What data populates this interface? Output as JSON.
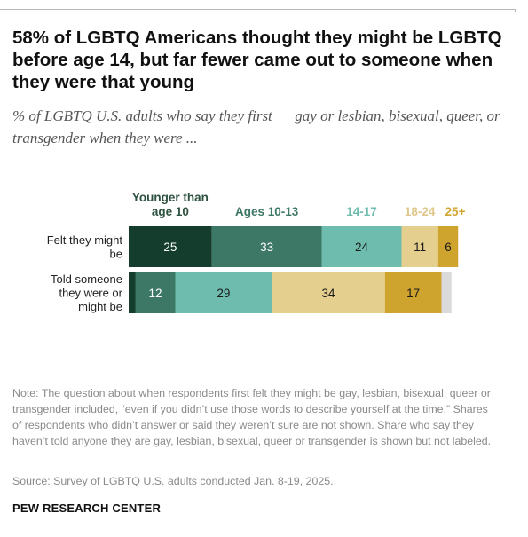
{
  "header": {
    "title": "58% of LGBTQ Americans thought they might be LGBTQ before age 14, but far fewer came out to someone when they were that young",
    "subtitle": "% of LGBTQ U.S. adults who say they first __ gay or lesbian, bisexual, queer, or transgender when they were ..."
  },
  "chart_data": {
    "type": "bar",
    "orientation": "horizontal",
    "stacked": true,
    "legend_position": "top",
    "categories": [
      [
        "Felt they might",
        "be"
      ],
      [
        "Told someone",
        "they were or",
        "might be"
      ]
    ],
    "series": [
      {
        "name": [
          "Younger than",
          "age 10"
        ],
        "color": "#143d2e",
        "label_color": "#ffffff",
        "legend_color": "#2f5240",
        "values": [
          25,
          2
        ]
      },
      {
        "name": [
          "Ages 10-13"
        ],
        "color": "#3d7866",
        "label_color": "#ffffff",
        "legend_color": "#3d7866",
        "values": [
          33,
          12
        ]
      },
      {
        "name": [
          "14-17"
        ],
        "color": "#6ebcae",
        "label_color": "#1a1a1a",
        "legend_color": "#6ebcae",
        "values": [
          24,
          29
        ]
      },
      {
        "name": [
          "18-24"
        ],
        "color": "#e5cf8f",
        "label_color": "#1a1a1a",
        "legend_color": "#e0c689",
        "values": [
          11,
          34
        ]
      },
      {
        "name": [
          "25+"
        ],
        "color": "#cfa42e",
        "label_color": "#1a1a1a",
        "legend_color": "#d1a630",
        "values": [
          6,
          17
        ]
      },
      {
        "name": [],
        "color": "#dadada",
        "label_color": "#1a1a1a",
        "legend_color": "#dadada",
        "values": [
          0,
          3
        ],
        "unlabeled": true
      }
    ],
    "value_labels": [
      [
        "25",
        "33",
        "24",
        "11",
        "6",
        ""
      ],
      [
        "",
        "12",
        "29",
        "34",
        "17",
        ""
      ]
    ],
    "xlim": [
      0,
      100
    ]
  },
  "footer": {
    "note": "Note: The question about when respondents first felt they might be gay, lesbian, bisexual, queer or transgender included, “even if you didn’t use those words to describe yourself at the time.” Shares of respondents who didn’t answer or said they weren’t sure are not shown. Share who say they haven’t told anyone they are gay, lesbian, bisexual, queer or transgender is shown but not labeled.",
    "source": "Source: Survey of LGBTQ U.S. adults conducted Jan. 8-19, 2025.",
    "brand": "PEW RESEARCH CENTER"
  }
}
